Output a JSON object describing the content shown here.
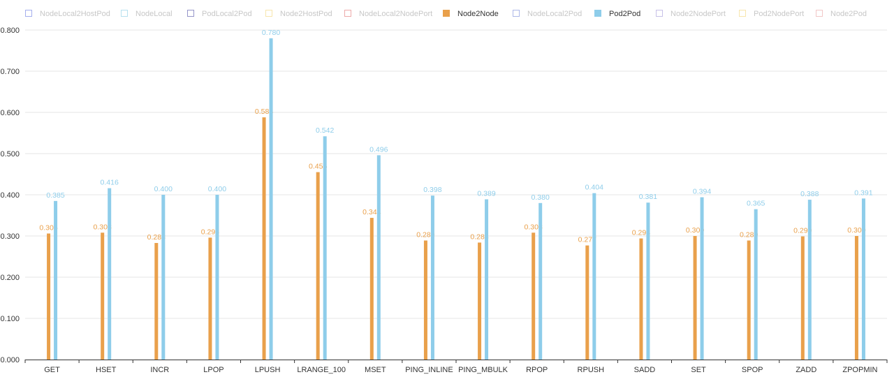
{
  "chart_data": {
    "type": "bar",
    "categories": [
      "GET",
      "HSET",
      "INCR",
      "LPOP",
      "LPUSH",
      "LRANGE_100",
      "MSET",
      "PING_INLINE",
      "PING_MBULK",
      "RPOP",
      "RPUSH",
      "SADD",
      "SET",
      "SPOP",
      "ZADD",
      "ZPOPMIN"
    ],
    "legend": [
      {
        "name": "NodeLocal2HostPod",
        "color": "#5b6ee1",
        "active": false
      },
      {
        "name": "NodeLocal",
        "color": "#7ec8e3",
        "active": false
      },
      {
        "name": "PodLocal2Pod",
        "color": "#3f3f9e",
        "active": false
      },
      {
        "name": "Node2HostPod",
        "color": "#f2d36b",
        "active": false
      },
      {
        "name": "NodeLocal2NodePort",
        "color": "#e06666",
        "active": false
      },
      {
        "name": "Node2Node",
        "color": "#e9a04b",
        "active": true
      },
      {
        "name": "NodeLocal2Pod",
        "color": "#6b7fd6",
        "active": false
      },
      {
        "name": "Pod2Pod",
        "color": "#8ecdea",
        "active": true
      },
      {
        "name": "Node2NodePort",
        "color": "#9b8fd6",
        "active": false
      },
      {
        "name": "Pod2NodePort",
        "color": "#f2d36b",
        "active": false
      },
      {
        "name": "Node2Pod",
        "color": "#e89a9a",
        "active": false
      }
    ],
    "series": [
      {
        "name": "Node2Node",
        "color": "#e9a04b",
        "values": [
          0.306,
          0.308,
          0.283,
          0.296,
          0.588,
          0.455,
          0.344,
          0.289,
          0.284,
          0.308,
          0.277,
          0.294,
          0.3,
          0.289,
          0.299,
          0.3
        ],
        "labels": [
          "0.306",
          "0.308",
          "0.283",
          "0.296",
          "0.588",
          "0.455",
          "0.344",
          "0.289",
          "0.284",
          "0.308",
          "0.277",
          "0.294",
          "0.300",
          "0.289",
          "0.299",
          "0.300"
        ]
      },
      {
        "name": "Pod2Pod",
        "color": "#8ecdea",
        "values": [
          0.385,
          0.416,
          0.4,
          0.4,
          0.78,
          0.542,
          0.496,
          0.398,
          0.389,
          0.38,
          0.404,
          0.381,
          0.394,
          0.365,
          0.388,
          0.391
        ],
        "labels": [
          "0.385",
          "0.416",
          "0.400",
          "0.400",
          "0.780",
          "0.542",
          "0.496",
          "0.398",
          "0.389",
          "0.380",
          "0.404",
          "0.381",
          "0.394",
          "0.365",
          "0.388",
          "0.391"
        ]
      }
    ],
    "yticks": [
      "0.000",
      "0.100",
      "0.200",
      "0.300",
      "0.400",
      "0.500",
      "0.600",
      "0.700",
      "0.800"
    ],
    "ylim": [
      0,
      0.8
    ],
    "grid": true,
    "legend_position": "top"
  }
}
